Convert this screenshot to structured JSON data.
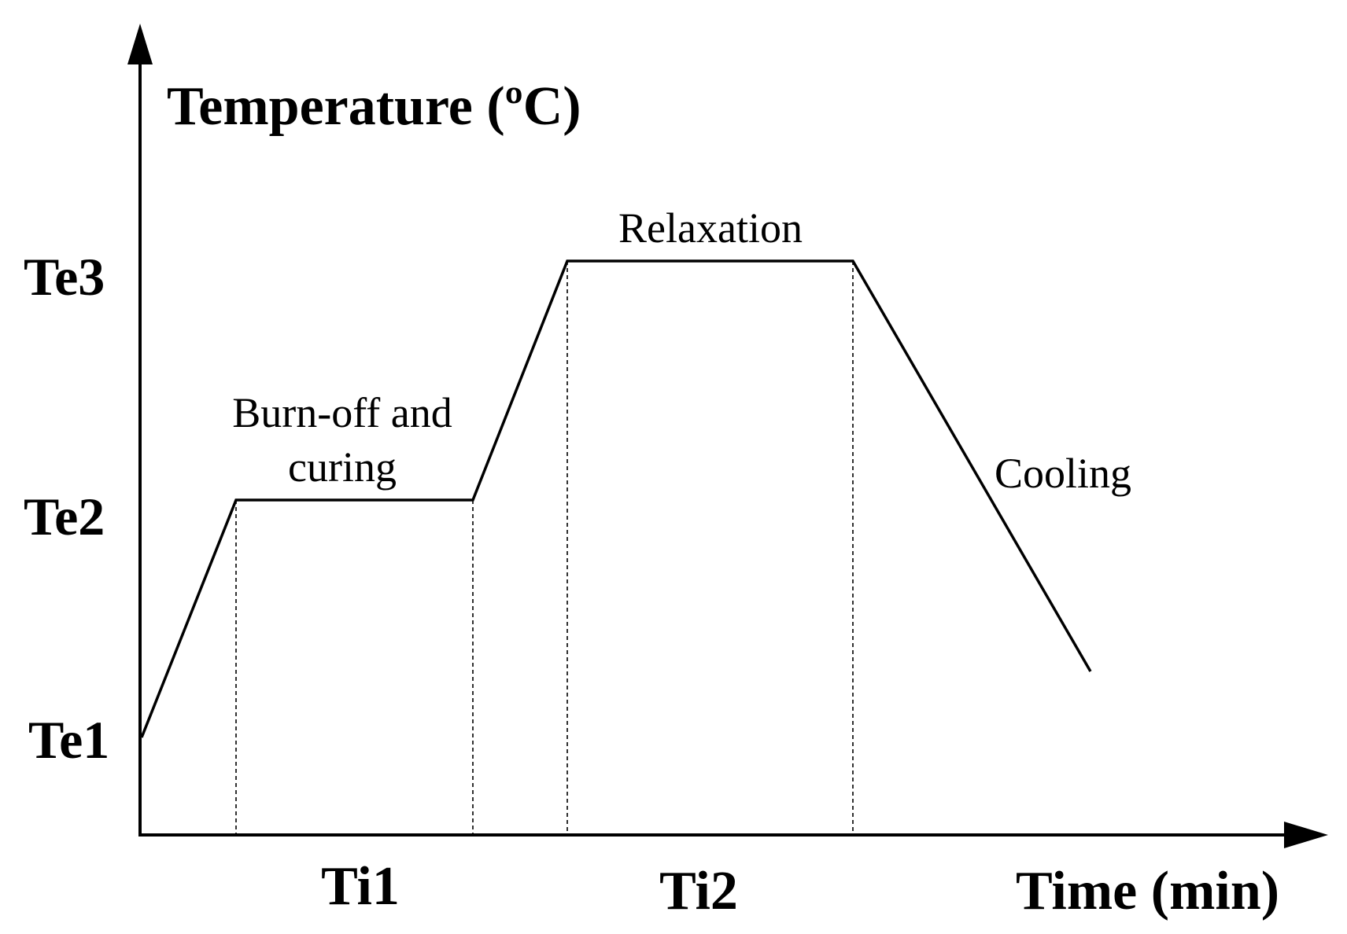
{
  "diagram": {
    "title": "Temperature (ºC)",
    "y_axis_title": "Temperature (ºC)",
    "x_axis_title": "Time (min)",
    "temperature_levels": [
      {
        "id": "te1",
        "label": "Te1"
      },
      {
        "id": "te2",
        "label": "Te2"
      },
      {
        "id": "te3",
        "label": "Te3"
      }
    ],
    "time_intervals": [
      {
        "id": "ti1",
        "label": "Ti1"
      },
      {
        "id": "ti2",
        "label": "Ti2"
      }
    ],
    "stages": {
      "burn_off_line1": "Burn-off and",
      "burn_off_line2": "curing",
      "relaxation": "Relaxation",
      "cooling": "Cooling"
    },
    "colors": {
      "line": "#000000",
      "background": "#ffffff"
    }
  }
}
